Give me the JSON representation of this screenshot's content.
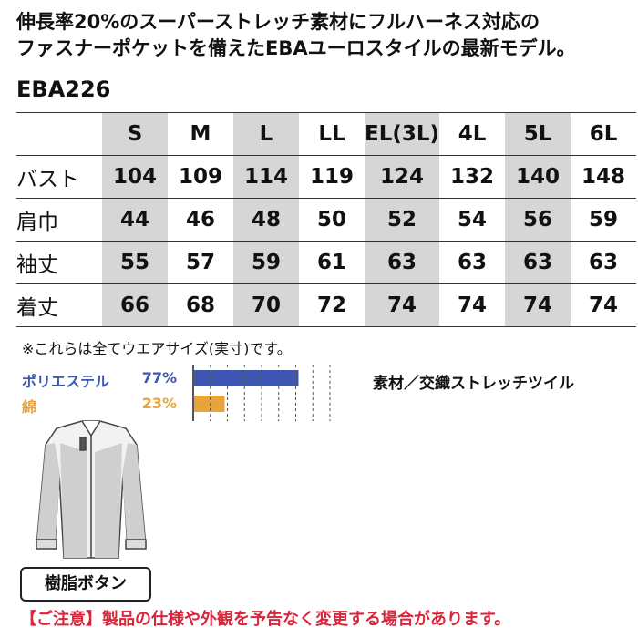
{
  "header": {
    "line1": "伸長率20%のスーパーストレッチ素材にフルハーネス対応の",
    "line2": "ファスナーポケットを備えたEBAユーロスタイルの最新モデル。"
  },
  "model_code": "EBA226",
  "size_table": {
    "sizes": [
      "S",
      "M",
      "L",
      "LL",
      "EL(3L)",
      "4L",
      "5L",
      "6L"
    ],
    "rows": [
      {
        "label": "バスト",
        "values": [
          "104",
          "109",
          "114",
          "119",
          "124",
          "132",
          "140",
          "148"
        ]
      },
      {
        "label": "肩巾",
        "values": [
          "44",
          "46",
          "48",
          "50",
          "52",
          "54",
          "56",
          "59"
        ]
      },
      {
        "label": "袖丈",
        "values": [
          "55",
          "57",
          "59",
          "61",
          "63",
          "63",
          "63",
          "63"
        ]
      },
      {
        "label": "着丈",
        "values": [
          "66",
          "68",
          "70",
          "72",
          "74",
          "74",
          "74",
          "74"
        ]
      }
    ],
    "shaded_column_indices": [
      0,
      2,
      4,
      6
    ]
  },
  "note": "※これらは全てウエアサイズ(実寸)です。",
  "material": {
    "items": [
      {
        "name": "ポリエステル",
        "percent_label": "77%",
        "fraction": 0.77,
        "color": "#3e56b2"
      },
      {
        "name": "綿",
        "percent_label": "23%",
        "fraction": 0.23,
        "color": "#e8a33a"
      }
    ],
    "fabric": "素材／交織ストレッチツイル"
  },
  "button_label": "樹脂ボタン",
  "caution": "【ご注意】製品の仕様や外観を予告なく変更する場合があります。"
}
